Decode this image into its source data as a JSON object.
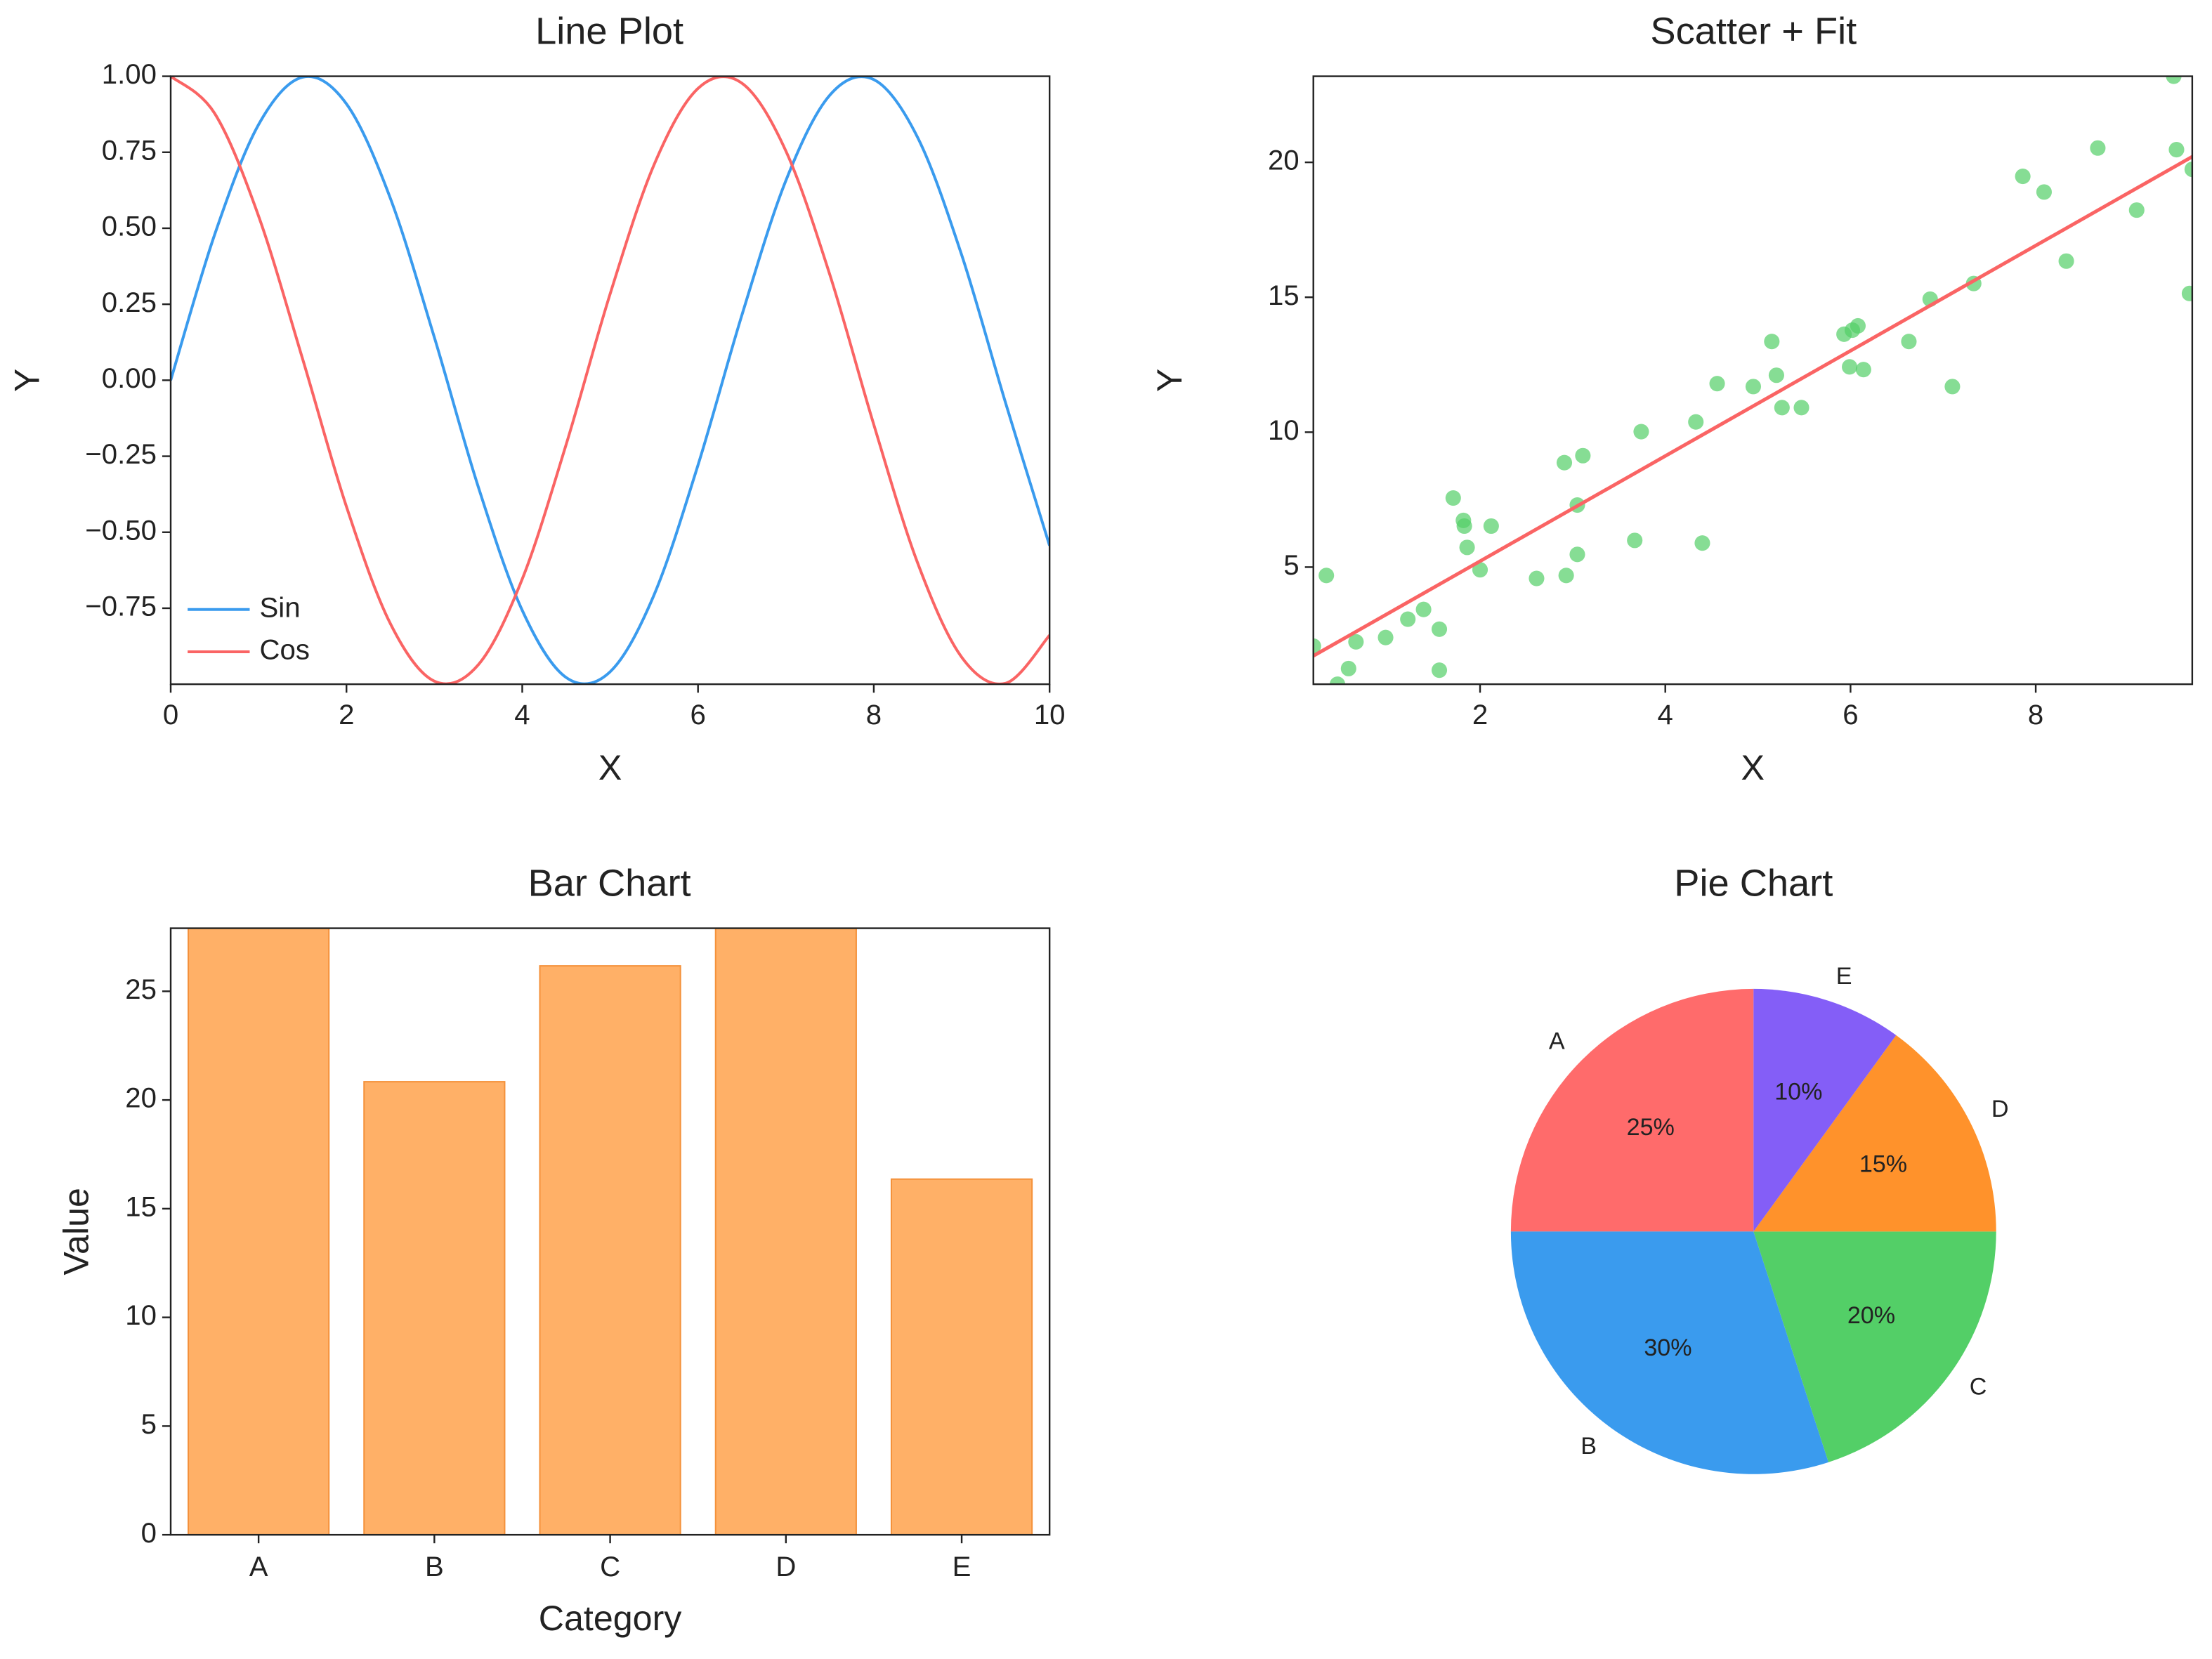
{
  "chart_data": [
    {
      "type": "line",
      "title": "Line Plot",
      "x_label": "X",
      "y_label": "Y",
      "x": [
        0,
        0.5,
        1,
        1.5,
        2,
        2.5,
        3,
        3.5,
        4,
        4.5,
        5,
        5.5,
        6,
        6.5,
        7,
        7.5,
        8,
        8.5,
        9,
        9.5,
        10
      ],
      "series": [
        {
          "name": "Sin",
          "color": "#3a9bee",
          "values": [
            0,
            0.479,
            0.841,
            0.997,
            0.909,
            0.598,
            0.141,
            -0.351,
            -0.757,
            -0.978,
            -0.959,
            -0.706,
            -0.279,
            0.215,
            0.657,
            0.938,
            0.989,
            0.798,
            0.412,
            -0.075,
            -0.544
          ]
        },
        {
          "name": "Cos",
          "color": "#fa6464",
          "values": [
            1,
            0.878,
            0.54,
            0.071,
            -0.416,
            -0.801,
            -0.99,
            -0.936,
            -0.654,
            -0.211,
            0.284,
            0.709,
            0.96,
            0.977,
            0.754,
            0.347,
            -0.146,
            -0.602,
            -0.911,
            -0.997,
            -0.839
          ]
        }
      ],
      "xlim": [
        0,
        10
      ],
      "xticks": [
        0,
        2,
        4,
        6,
        8,
        10
      ],
      "ylim": [
        -1,
        1
      ],
      "yticks": [
        {
          "value": -0.75,
          "label": "−0.75"
        },
        {
          "value": -0.5,
          "label": "−0.50"
        },
        {
          "value": -0.25,
          "label": "−0.25"
        },
        {
          "value": 0,
          "label": "0.00"
        },
        {
          "value": 0.25,
          "label": "0.25"
        },
        {
          "value": 0.5,
          "label": "0.50"
        },
        {
          "value": 0.75,
          "label": "0.75"
        },
        {
          "value": 1,
          "label": "1.00"
        }
      ],
      "legend": "lower left"
    },
    {
      "type": "scatter",
      "title": "Scatter + Fit",
      "x_label": "X",
      "y_label": "Y",
      "color": "#53cf67",
      "x": [
        0.2,
        0.34,
        0.46,
        0.58,
        0.66,
        0.98,
        1.22,
        1.39,
        1.56,
        1.56,
        1.71,
        1.82,
        1.83,
        1.86,
        2.0,
        2.12,
        2.61,
        2.91,
        2.93,
        3.05,
        3.05,
        3.11,
        3.67,
        3.74,
        4.33,
        4.4,
        4.56,
        4.95,
        5.15,
        5.2,
        5.26,
        5.47,
        5.93,
        5.99,
        6.02,
        6.08,
        6.14,
        6.63,
        6.86,
        7.1,
        7.33,
        7.86,
        8.09,
        8.33,
        8.67,
        9.09,
        9.49,
        9.52,
        9.66,
        9.69
      ],
      "y": [
        2.07,
        4.69,
        0.66,
        1.24,
        2.23,
        2.39,
        3.07,
        3.43,
        2.7,
        1.18,
        7.56,
        6.73,
        6.52,
        5.73,
        4.9,
        6.52,
        4.58,
        8.87,
        4.69,
        7.3,
        5.47,
        9.13,
        5.99,
        10.02,
        10.38,
        5.89,
        11.8,
        11.69,
        13.36,
        12.11,
        10.91,
        10.91,
        13.63,
        12.42,
        13.78,
        13.94,
        12.32,
        13.36,
        14.93,
        11.69,
        15.51,
        19.48,
        18.9,
        16.34,
        20.53,
        18.23,
        23.19,
        20.47,
        15.14,
        19.74
      ],
      "fit": {
        "color": "#fa6464",
        "x": [
          0.2,
          9.69
        ],
        "y": [
          1.71,
          20.21
        ]
      },
      "xlim": [
        0.2,
        9.69
      ],
      "xticks": [
        2,
        4,
        6,
        8
      ],
      "ylim": [
        0.66,
        23.19
      ],
      "yticks": [
        5,
        10,
        15,
        20
      ]
    },
    {
      "type": "bar",
      "title": "Bar Chart",
      "x_label": "Category",
      "y_label": "Value",
      "color": "#ffb067",
      "edge_color": "#f4913a",
      "categories": [
        "A",
        "B",
        "C",
        "D",
        "E"
      ],
      "values": [
        27.9,
        20.84,
        26.17,
        27.9,
        16.36
      ],
      "ylim": [
        0,
        27.9
      ],
      "yticks": [
        0,
        5,
        10,
        15,
        20,
        25
      ]
    },
    {
      "type": "pie",
      "title": "Pie Chart",
      "startangle": 90,
      "counterclock": true,
      "categories": [
        "A",
        "B",
        "C",
        "D",
        "E"
      ],
      "values": [
        25,
        30,
        20,
        15,
        10
      ],
      "value_labels": [
        "25%",
        "30%",
        "20%",
        "15%",
        "10%"
      ],
      "colors": [
        "#ff6b6b",
        "#3a9bee",
        "#53cf67",
        "#ff922b",
        "#845ef7"
      ]
    }
  ]
}
